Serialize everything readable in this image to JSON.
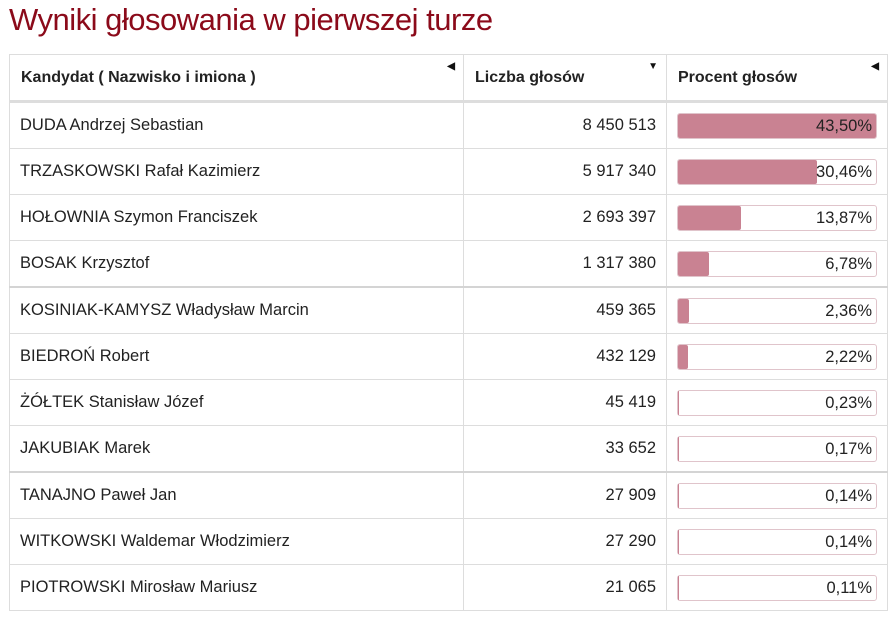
{
  "title": "Wyniki głosowania w pierwszej turze",
  "headers": {
    "candidate": "Kandydat ( Nazwisko i imiona )",
    "votes": "Liczba głosów",
    "percent": "Procent głosów"
  },
  "colors": {
    "title": "#8b0a1a",
    "bar": "#c98292"
  },
  "rows": [
    {
      "name": "DUDA Andrzej Sebastian",
      "votes": "8 450 513",
      "percent": "43,50%",
      "value": 43.5
    },
    {
      "name": "TRZASKOWSKI Rafał Kazimierz",
      "votes": "5 917 340",
      "percent": "30,46%",
      "value": 30.46
    },
    {
      "name": "HOŁOWNIA Szymon Franciszek",
      "votes": "2 693 397",
      "percent": "13,87%",
      "value": 13.87
    },
    {
      "name": "BOSAK Krzysztof",
      "votes": "1 317 380",
      "percent": "6,78%",
      "value": 6.78
    },
    {
      "name": "KOSINIAK-KAMYSZ Władysław Marcin",
      "votes": "459 365",
      "percent": "2,36%",
      "value": 2.36
    },
    {
      "name": "BIEDROŃ Robert",
      "votes": "432 129",
      "percent": "2,22%",
      "value": 2.22
    },
    {
      "name": "ŻÓŁTEK Stanisław Józef",
      "votes": "45 419",
      "percent": "0,23%",
      "value": 0.23
    },
    {
      "name": "JAKUBIAK Marek",
      "votes": "33 652",
      "percent": "0,17%",
      "value": 0.17
    },
    {
      "name": "TANAJNO Paweł Jan",
      "votes": "27 909",
      "percent": "0,14%",
      "value": 0.14
    },
    {
      "name": "WITKOWSKI Waldemar Włodzimierz",
      "votes": "27 290",
      "percent": "0,14%",
      "value": 0.14
    },
    {
      "name": "PIOTROWSKI Mirosław Mariusz",
      "votes": "21 065",
      "percent": "0,11%",
      "value": 0.11
    }
  ]
}
